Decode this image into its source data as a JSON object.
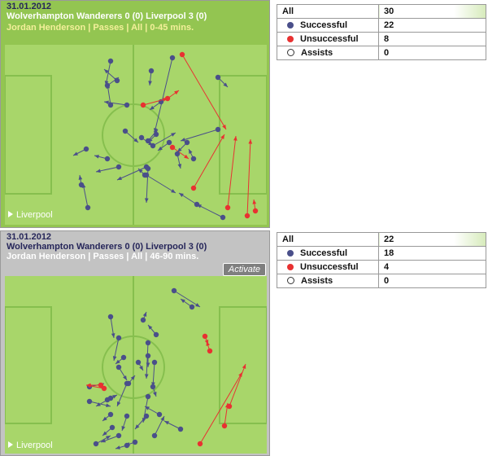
{
  "colors": {
    "successful": "#4a4f8a",
    "unsuccessful": "#e83131",
    "pitch": "#a8d66a",
    "lines": "#7fb845"
  },
  "panels": [
    {
      "date": "31.01.2012",
      "match": "Wolverhampton Wanderers 0 (0) Liverpool 3 (0)",
      "subtitle": "Jordan Henderson | Passes | All | 0-45 mins.",
      "team_tag": "Liverpool",
      "stats": {
        "all_label": "All",
        "all_value": "30",
        "rows": [
          {
            "label": "Successful",
            "value": "22",
            "kind": "successful-icon"
          },
          {
            "label": "Unsuccessful",
            "value": "8",
            "kind": "unsuccessful-icon"
          },
          {
            "label": "Assists",
            "value": "0",
            "kind": "assists-icon"
          }
        ]
      }
    },
    {
      "date": "31.01.2012",
      "match": "Wolverhampton Wanderers 0 (0) Liverpool 3 (0)",
      "subtitle": "Jordan Henderson | Passes | All | 46-90 mins.",
      "team_tag": "Liverpool",
      "activate_label": "Activate",
      "stats": {
        "all_label": "All",
        "all_value": "22",
        "rows": [
          {
            "label": "Successful",
            "value": "18",
            "kind": "successful-icon"
          },
          {
            "label": "Unsuccessful",
            "value": "4",
            "kind": "unsuccessful-icon"
          },
          {
            "label": "Assists",
            "value": "0",
            "kind": "assists-icon"
          }
        ]
      }
    }
  ]
}
